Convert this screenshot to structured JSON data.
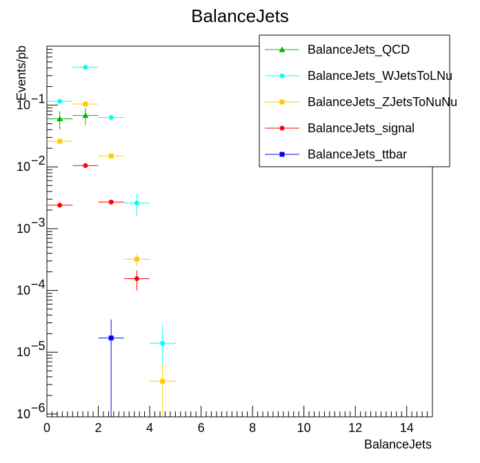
{
  "chart_data": {
    "type": "scatter",
    "title": "BalanceJets",
    "xlabel": "BalanceJets",
    "ylabel": "Events/pb",
    "xlim": [
      0,
      15
    ],
    "ylim": [
      9e-07,
      0.9
    ],
    "yscale": "log",
    "x_tick_labels": [
      "0",
      "2",
      "4",
      "6",
      "8",
      "10",
      "12",
      "14"
    ],
    "y_tick_labels": [
      {
        "base": "10",
        "exp": "−1"
      },
      {
        "base": "10",
        "exp": "−2"
      },
      {
        "base": "10",
        "exp": "−3"
      },
      {
        "base": "10",
        "exp": "−4"
      },
      {
        "base": "10",
        "exp": "−5"
      },
      {
        "base": "10",
        "exp": "−6"
      }
    ],
    "legend_position": "top-right",
    "series": [
      {
        "name": "BalanceJets_QCD",
        "color": "#00b400",
        "marker": "triangle",
        "points": [
          {
            "x": 0.5,
            "y": 0.06,
            "ylo": 0.04,
            "yhi": 0.08
          },
          {
            "x": 1.5,
            "y": 0.068,
            "ylo": 0.048,
            "yhi": 0.09
          }
        ]
      },
      {
        "name": "BalanceJets_WJetsToLNu",
        "color": "#00ffff",
        "marker": "circle",
        "points": [
          {
            "x": 0.5,
            "y": 0.115
          },
          {
            "x": 1.5,
            "y": 0.41
          },
          {
            "x": 2.5,
            "y": 0.063
          },
          {
            "x": 3.5,
            "y": 0.0026,
            "ylo": 0.0016,
            "yhi": 0.0037
          },
          {
            "x": 4.5,
            "y": 1.4e-05,
            "ylo": 5.5e-06,
            "yhi": 2.8e-05
          }
        ]
      },
      {
        "name": "BalanceJets_ZJetsToNuNu",
        "color": "#ffcc00",
        "marker": "square",
        "points": [
          {
            "x": 0.5,
            "y": 0.026
          },
          {
            "x": 1.5,
            "y": 0.104
          },
          {
            "x": 2.5,
            "y": 0.015
          },
          {
            "x": 3.5,
            "y": 0.00032,
            "ylo": 0.00025,
            "yhi": 0.0004
          },
          {
            "x": 4.5,
            "y": 3.4e-06,
            "ylo": 9e-07,
            "yhi": 6.5e-06
          }
        ]
      },
      {
        "name": "BalanceJets_signal",
        "color": "#ff0000",
        "marker": "circle",
        "points": [
          {
            "x": 0.5,
            "y": 0.0024
          },
          {
            "x": 1.5,
            "y": 0.0105
          },
          {
            "x": 2.5,
            "y": 0.0027
          },
          {
            "x": 3.5,
            "y": 0.000155,
            "ylo": 0.0001,
            "yhi": 0.00021
          }
        ]
      },
      {
        "name": "BalanceJets_ttbar",
        "color": "#0000ff",
        "marker": "square",
        "points": [
          {
            "x": 2.5,
            "y": 1.7e-05,
            "ylo": 9e-07,
            "yhi": 3.4e-05
          }
        ]
      }
    ]
  }
}
